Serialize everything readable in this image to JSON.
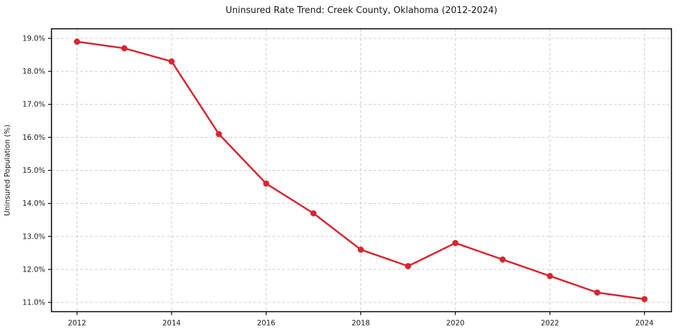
{
  "chart_data": {
    "type": "line",
    "title": "Uninsured Rate Trend: Creek County, Oklahoma (2012-2024)",
    "xlabel": "",
    "ylabel": "Uninsured Population (%)",
    "x": [
      2012,
      2013,
      2014,
      2015,
      2016,
      2017,
      2018,
      2019,
      2020,
      2021,
      2022,
      2023,
      2024
    ],
    "values": [
      18.9,
      18.7,
      18.3,
      16.1,
      14.6,
      13.7,
      12.6,
      12.1,
      12.8,
      12.3,
      11.8,
      11.3,
      11.1
    ],
    "x_ticks": [
      2012,
      2014,
      2016,
      2018,
      2020,
      2022,
      2024
    ],
    "x_tick_labels": [
      "2012",
      "2014",
      "2016",
      "2018",
      "2020",
      "2022",
      "2024"
    ],
    "y_ticks": [
      11,
      12,
      13,
      14,
      15,
      16,
      17,
      18,
      19
    ],
    "y_tick_labels": [
      "11.0%",
      "12.0%",
      "13.0%",
      "14.0%",
      "15.0%",
      "16.0%",
      "17.0%",
      "18.0%",
      "19.0%"
    ],
    "xlim": [
      2011.46,
      2024.57
    ],
    "ylim": [
      10.72,
      19.29
    ],
    "grid": true,
    "grid_style": "dashed",
    "legend": "none",
    "marker": "circle",
    "colors": {
      "line": "#d62732",
      "grid": "#cccccc",
      "axis": "#000000",
      "text": "#1a1a1a"
    }
  }
}
